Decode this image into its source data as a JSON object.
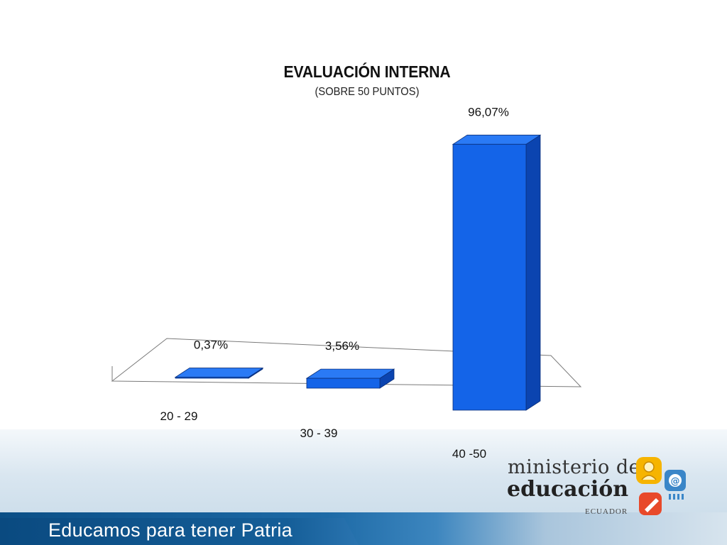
{
  "chart_data": {
    "type": "bar",
    "title": "EVALUACIÓN INTERNA",
    "subtitle": "(SOBRE 50 PUNTOS)",
    "categories": [
      "20 - 29",
      "30 - 39",
      "40 -50"
    ],
    "values": [
      0.37,
      3.56,
      96.07
    ],
    "data_labels": [
      "0,37%",
      "3,56%",
      "96,07%"
    ],
    "ylim": [
      0,
      100
    ],
    "grid": false,
    "legend": "none",
    "three_d": true,
    "bar_color": "#1464e8"
  },
  "footer": {
    "slogan": "Educamos para tener Patria",
    "logo_line1": "ministerio de",
    "logo_line2": "educación",
    "logo_line3": "ECUADOR"
  }
}
